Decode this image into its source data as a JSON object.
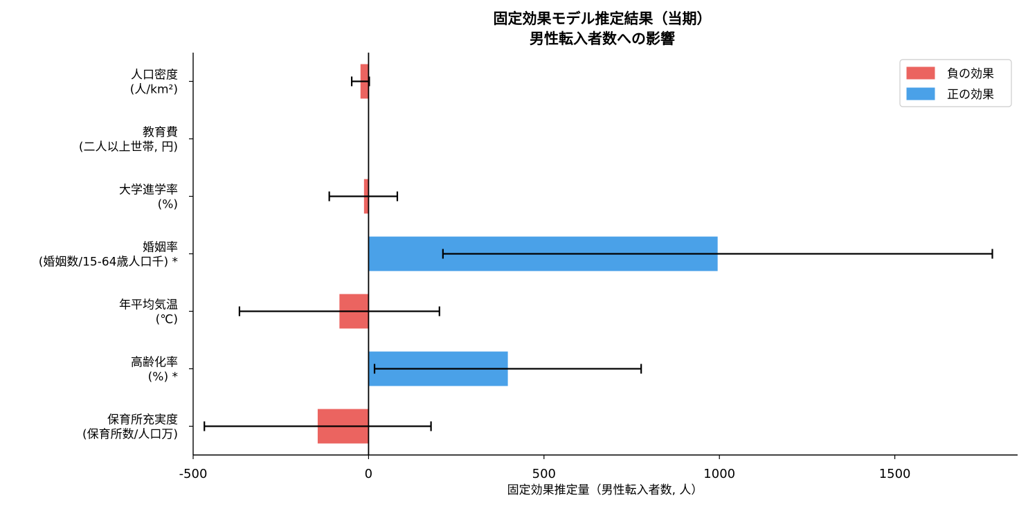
{
  "chart_data": {
    "type": "bar",
    "orientation": "horizontal",
    "title": "固定効果モデル推定結果（当期）",
    "subtitle": "男性転入者数への影響",
    "xlabel": "固定効果推定量（男性転入者数, 人）",
    "ylabel": "",
    "xlim": [
      -500,
      1850
    ],
    "xticks": [
      -500,
      0,
      500,
      1000,
      1500
    ],
    "grid": false,
    "legend_position": "top-right",
    "colors": {
      "negative": "#eb6460",
      "positive": "#4aa1e8",
      "errorbar": "#000000"
    },
    "legend": [
      {
        "key": "negative",
        "label": "負の効果"
      },
      {
        "key": "positive",
        "label": "正の効果"
      }
    ],
    "categories": [
      {
        "label": [
          "人口密度",
          "(人/km²)"
        ],
        "value": -23,
        "err_low": -48,
        "err_high": 2
      },
      {
        "label": [
          "教育費",
          "(二人以上世帯, 円)"
        ],
        "value": 0.5,
        "err_low": 0.5,
        "err_high": 0.5
      },
      {
        "label": [
          "大学進学率",
          "(%)"
        ],
        "value": -13,
        "err_low": -112,
        "err_high": 82
      },
      {
        "label": [
          "婚姻率",
          "(婚姻数/15-64歳人口千) *"
        ],
        "value": 995,
        "err_low": 212,
        "err_high": 1778
      },
      {
        "label": [
          "年平均気温",
          "(℃)"
        ],
        "value": -83,
        "err_low": -368,
        "err_high": 202
      },
      {
        "label": [
          "高齢化率",
          "(%) *"
        ],
        "value": 397,
        "err_low": 17,
        "err_high": 777
      },
      {
        "label": [
          "保育所充実度",
          "(保育所数/人口万)"
        ],
        "value": -145,
        "err_low": -468,
        "err_high": 178
      }
    ]
  }
}
